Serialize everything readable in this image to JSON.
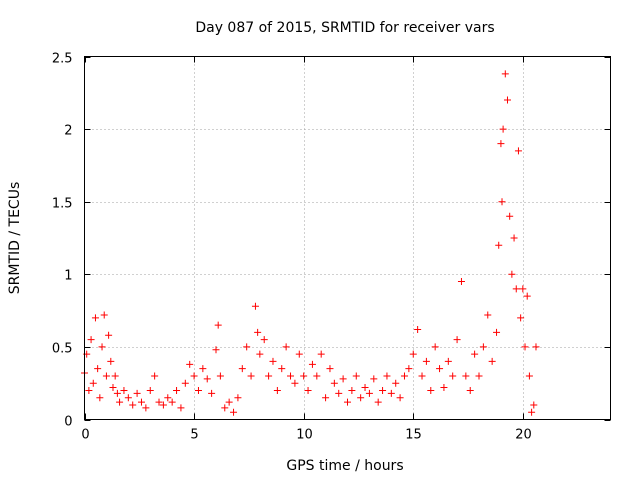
{
  "chart_data": {
    "type": "scatter",
    "title": "Day 087 of 2015, SRMTID for receiver vars",
    "xlabel": "GPS time / hours",
    "ylabel": "SRMTID / TECUs",
    "xlim": [
      0,
      24
    ],
    "ylim": [
      0,
      2.5
    ],
    "x_ticks": [
      0,
      5,
      10,
      15,
      20
    ],
    "x_tick_labels": [
      "0",
      "5",
      "10",
      "15",
      "20"
    ],
    "y_ticks": [
      0,
      0.5,
      1,
      1.5,
      2,
      2.5
    ],
    "y_tick_labels": [
      "0",
      "0.5",
      "1",
      "1.5",
      "2",
      "2.5"
    ],
    "grid": true,
    "legend": "none",
    "marker": "plus",
    "series": [
      {
        "name": "SRMTID",
        "color": "#ff0000",
        "points": [
          [
            0.0,
            0.32
          ],
          [
            0.1,
            0.45
          ],
          [
            0.2,
            0.2
          ],
          [
            0.3,
            0.55
          ],
          [
            0.4,
            0.25
          ],
          [
            0.5,
            0.7
          ],
          [
            0.6,
            0.35
          ],
          [
            0.7,
            0.15
          ],
          [
            0.8,
            0.5
          ],
          [
            0.9,
            0.72
          ],
          [
            1.0,
            0.3
          ],
          [
            1.1,
            0.58
          ],
          [
            1.2,
            0.4
          ],
          [
            1.3,
            0.22
          ],
          [
            1.4,
            0.3
          ],
          [
            1.5,
            0.18
          ],
          [
            1.6,
            0.12
          ],
          [
            1.8,
            0.2
          ],
          [
            2.0,
            0.15
          ],
          [
            2.2,
            0.1
          ],
          [
            2.4,
            0.18
          ],
          [
            2.6,
            0.12
          ],
          [
            2.8,
            0.08
          ],
          [
            3.0,
            0.2
          ],
          [
            3.2,
            0.3
          ],
          [
            3.4,
            0.12
          ],
          [
            3.6,
            0.1
          ],
          [
            3.8,
            0.15
          ],
          [
            4.0,
            0.12
          ],
          [
            4.2,
            0.2
          ],
          [
            4.4,
            0.08
          ],
          [
            4.6,
            0.25
          ],
          [
            4.8,
            0.38
          ],
          [
            5.0,
            0.3
          ],
          [
            5.2,
            0.2
          ],
          [
            5.4,
            0.35
          ],
          [
            5.6,
            0.28
          ],
          [
            5.8,
            0.18
          ],
          [
            6.0,
            0.48
          ],
          [
            6.1,
            0.65
          ],
          [
            6.2,
            0.3
          ],
          [
            6.4,
            0.08
          ],
          [
            6.6,
            0.12
          ],
          [
            6.8,
            0.05
          ],
          [
            7.0,
            0.15
          ],
          [
            7.2,
            0.35
          ],
          [
            7.4,
            0.5
          ],
          [
            7.6,
            0.3
          ],
          [
            7.8,
            0.78
          ],
          [
            7.9,
            0.6
          ],
          [
            8.0,
            0.45
          ],
          [
            8.2,
            0.55
          ],
          [
            8.4,
            0.3
          ],
          [
            8.6,
            0.4
          ],
          [
            8.8,
            0.2
          ],
          [
            9.0,
            0.35
          ],
          [
            9.2,
            0.5
          ],
          [
            9.4,
            0.3
          ],
          [
            9.6,
            0.25
          ],
          [
            9.8,
            0.45
          ],
          [
            10.0,
            0.3
          ],
          [
            10.2,
            0.2
          ],
          [
            10.4,
            0.38
          ],
          [
            10.6,
            0.3
          ],
          [
            10.8,
            0.45
          ],
          [
            11.0,
            0.15
          ],
          [
            11.2,
            0.35
          ],
          [
            11.4,
            0.25
          ],
          [
            11.6,
            0.18
          ],
          [
            11.8,
            0.28
          ],
          [
            12.0,
            0.12
          ],
          [
            12.2,
            0.2
          ],
          [
            12.4,
            0.3
          ],
          [
            12.6,
            0.15
          ],
          [
            12.8,
            0.22
          ],
          [
            13.0,
            0.18
          ],
          [
            13.2,
            0.28
          ],
          [
            13.4,
            0.12
          ],
          [
            13.6,
            0.2
          ],
          [
            13.8,
            0.3
          ],
          [
            14.0,
            0.18
          ],
          [
            14.2,
            0.25
          ],
          [
            14.4,
            0.15
          ],
          [
            14.6,
            0.3
          ],
          [
            14.8,
            0.35
          ],
          [
            15.0,
            0.45
          ],
          [
            15.2,
            0.62
          ],
          [
            15.4,
            0.3
          ],
          [
            15.6,
            0.4
          ],
          [
            15.8,
            0.2
          ],
          [
            16.0,
            0.5
          ],
          [
            16.2,
            0.35
          ],
          [
            16.4,
            0.22
          ],
          [
            16.6,
            0.4
          ],
          [
            16.8,
            0.3
          ],
          [
            17.0,
            0.55
          ],
          [
            17.2,
            0.95
          ],
          [
            17.4,
            0.3
          ],
          [
            17.6,
            0.2
          ],
          [
            17.8,
            0.45
          ],
          [
            18.0,
            0.3
          ],
          [
            18.2,
            0.5
          ],
          [
            18.4,
            0.72
          ],
          [
            18.6,
            0.4
          ],
          [
            18.8,
            0.6
          ],
          [
            18.9,
            1.2
          ],
          [
            19.0,
            1.9
          ],
          [
            19.05,
            1.5
          ],
          [
            19.1,
            2.0
          ],
          [
            19.2,
            2.38
          ],
          [
            19.3,
            2.2
          ],
          [
            19.4,
            1.4
          ],
          [
            19.5,
            1.0
          ],
          [
            19.6,
            1.25
          ],
          [
            19.7,
            0.9
          ],
          [
            19.8,
            1.85
          ],
          [
            19.9,
            0.7
          ],
          [
            20.0,
            0.9
          ],
          [
            20.1,
            0.5
          ],
          [
            20.2,
            0.85
          ],
          [
            20.3,
            0.3
          ],
          [
            20.4,
            0.05
          ],
          [
            20.5,
            0.1
          ],
          [
            20.6,
            0.5
          ]
        ]
      }
    ]
  }
}
